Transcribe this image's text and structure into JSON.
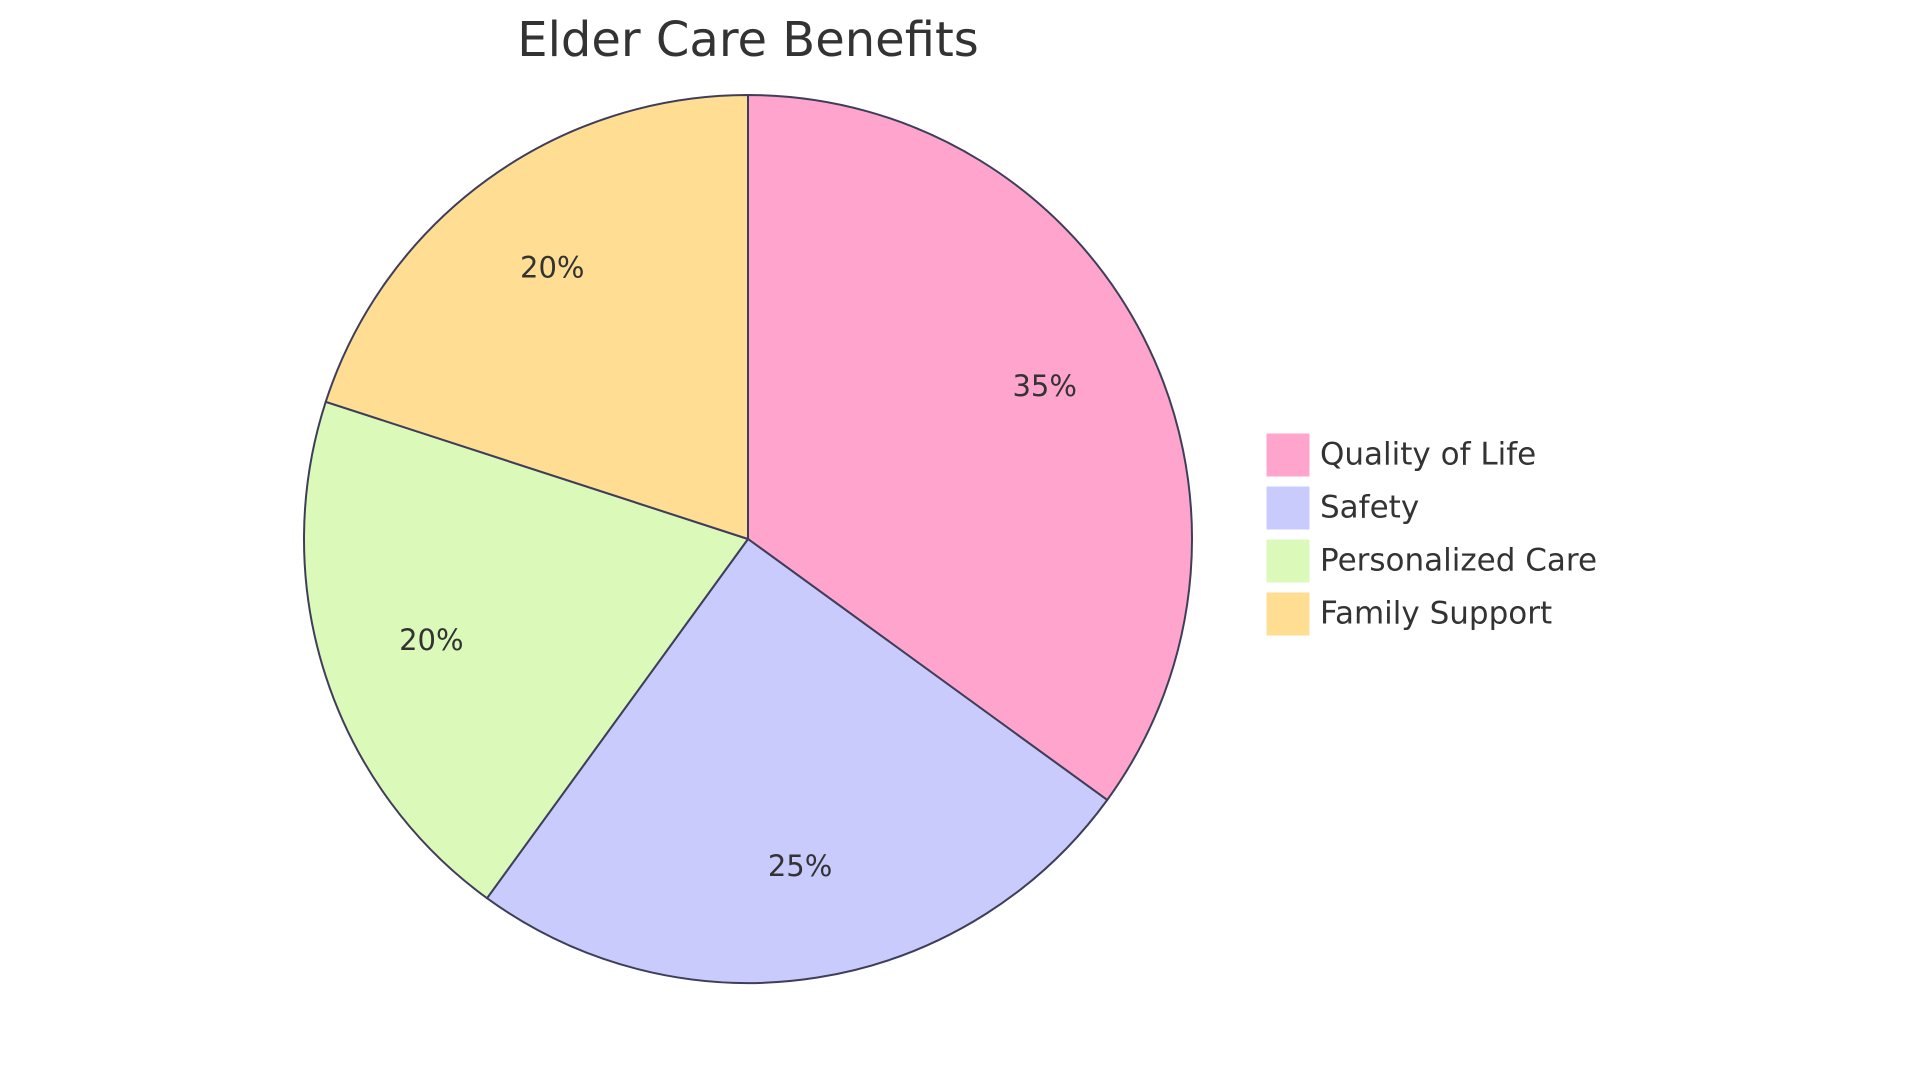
{
  "chart_data": {
    "type": "pie",
    "title": "Elder Care Benefits",
    "categories": [
      "Quality of Life",
      "Safety",
      "Personalized Care",
      "Family Support"
    ],
    "values": [
      35,
      25,
      20,
      20
    ],
    "value_labels": [
      "35%",
      "25%",
      "20%",
      "20%"
    ],
    "colors": [
      "#FFA5CD",
      "#CACBFD",
      "#DBF9B9",
      "#FFDE94"
    ]
  }
}
